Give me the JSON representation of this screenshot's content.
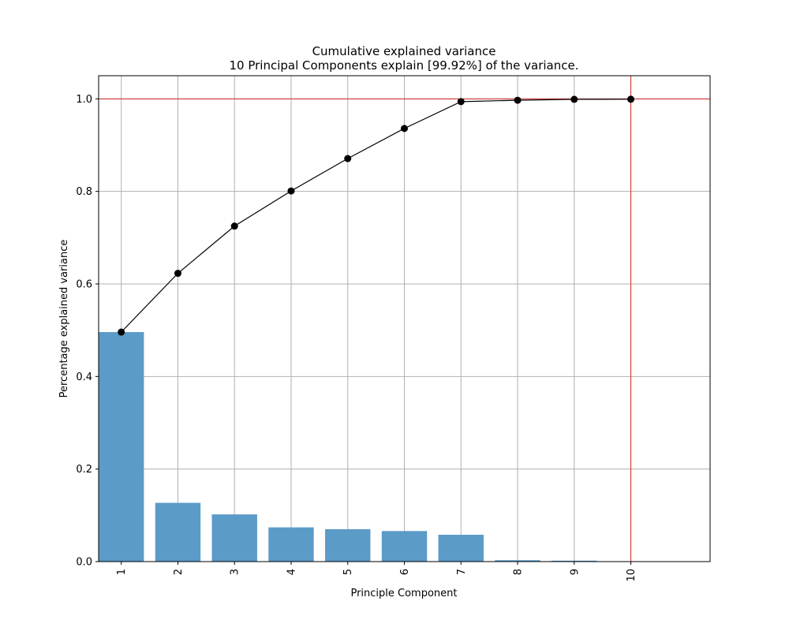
{
  "chart_data": {
    "type": "bar",
    "title": "Cumulative explained variance",
    "subtitle": "10 Principal Components explain [99.92%] of the variance.",
    "xlabel": "Principle Component",
    "ylabel": "Percentage explained variance",
    "categories": [
      "1",
      "2",
      "3",
      "4",
      "5",
      "6",
      "7",
      "8",
      "9",
      "10"
    ],
    "series": [
      {
        "type": "bar",
        "values": [
          0.496,
          0.127,
          0.102,
          0.074,
          0.07,
          0.066,
          0.058,
          0.003,
          0.002,
          0.0008
        ]
      },
      {
        "type": "line",
        "values": [
          0.496,
          0.623,
          0.725,
          0.801,
          0.871,
          0.936,
          0.994,
          0.997,
          0.999,
          0.9992
        ]
      }
    ],
    "yticks": [
      "0.0",
      "0.2",
      "0.4",
      "0.6",
      "0.8",
      "1.0"
    ],
    "ylim": [
      0,
      1.05
    ],
    "xlim": [
      0.6,
      11.4
    ],
    "reference_lines": {
      "horizontal_y": 1.0,
      "vertical_x": 10
    },
    "grid": true,
    "colors": {
      "bar": "#5b9bc8",
      "line": "#000000",
      "marker": "#000000",
      "reference": "#d62728",
      "grid": "#b0b0b0"
    }
  }
}
